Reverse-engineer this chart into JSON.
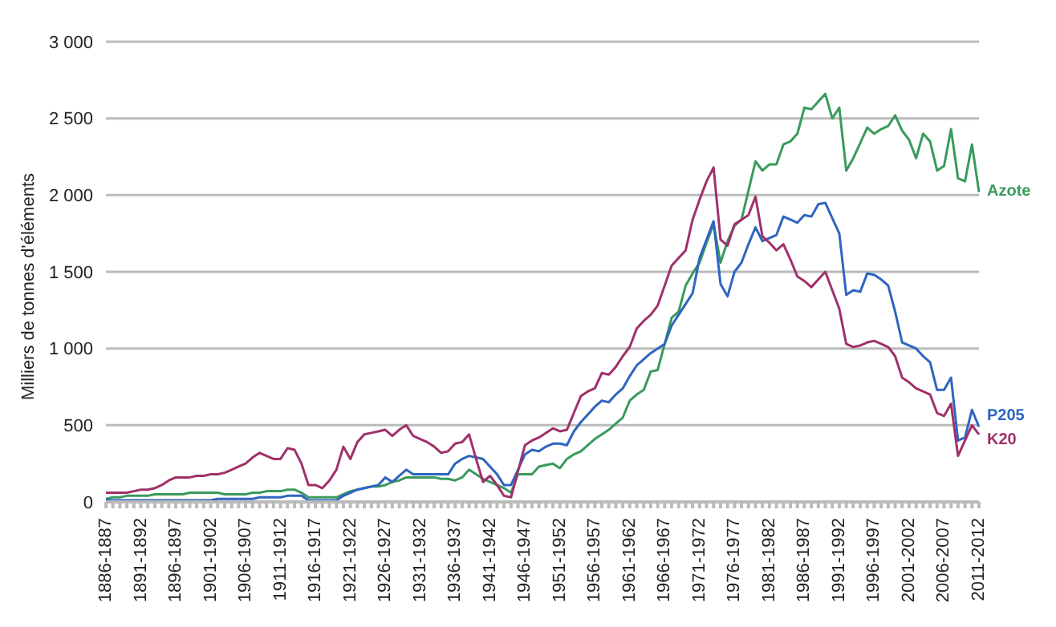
{
  "chart_data": {
    "type": "line",
    "ylabel": "Milliers de tonnes d'éléments",
    "categories": [
      "1886-1887",
      null,
      null,
      null,
      null,
      "1891-1892",
      null,
      null,
      null,
      null,
      "1896-1897",
      null,
      null,
      null,
      null,
      "1901-1902",
      null,
      null,
      null,
      null,
      "1906-1907",
      null,
      null,
      null,
      null,
      "1911-1912",
      null,
      null,
      null,
      null,
      "1916-1917",
      null,
      null,
      null,
      null,
      "1921-1922",
      null,
      null,
      null,
      null,
      "1926-1927",
      null,
      null,
      null,
      null,
      "1931-1932",
      null,
      null,
      null,
      null,
      "1936-1937",
      null,
      null,
      null,
      null,
      "1941-1942",
      null,
      null,
      null,
      null,
      "1946-1947",
      null,
      null,
      null,
      null,
      "1951-1952",
      null,
      null,
      null,
      null,
      "1956-1957",
      null,
      null,
      null,
      null,
      "1961-1962",
      null,
      null,
      null,
      null,
      "1966-1967",
      null,
      null,
      null,
      null,
      "1971-1972",
      null,
      null,
      null,
      null,
      "1976-1977",
      null,
      null,
      null,
      null,
      "1981-1982",
      null,
      null,
      null,
      null,
      "1986-1987",
      null,
      null,
      null,
      null,
      "1991-1992",
      null,
      null,
      null,
      null,
      "1996-1997",
      null,
      null,
      null,
      null,
      "2001-2002",
      null,
      null,
      null,
      null,
      "2006-2007",
      null,
      null,
      null,
      null,
      "2011-2012"
    ],
    "ylim": [
      0,
      3000
    ],
    "yticks": [
      0,
      500,
      {
        "value": 1000,
        "label": "1 000"
      },
      {
        "value": 1500,
        "label": "1 500"
      },
      {
        "value": 2000,
        "label": "2 000"
      },
      {
        "value": 2500,
        "label": "2 500"
      },
      {
        "value": 3000,
        "label": "3 000"
      }
    ],
    "grid": "y",
    "legend": false,
    "marker": "none",
    "line_style": "solid",
    "series": [
      {
        "name": "Azote",
        "color": "#3a9a5c",
        "values": [
          20,
          30,
          30,
          40,
          40,
          40,
          40,
          50,
          50,
          50,
          50,
          50,
          60,
          60,
          60,
          60,
          60,
          50,
          50,
          50,
          50,
          60,
          60,
          70,
          70,
          70,
          80,
          80,
          60,
          30,
          30,
          30,
          30,
          30,
          50,
          70,
          80,
          90,
          100,
          100,
          110,
          130,
          140,
          160,
          160,
          160,
          160,
          160,
          150,
          150,
          140,
          160,
          210,
          180,
          150,
          130,
          110,
          90,
          60,
          180,
          180,
          180,
          230,
          240,
          250,
          220,
          280,
          310,
          330,
          370,
          410,
          440,
          470,
          510,
          550,
          660,
          700,
          730,
          850,
          860,
          1030,
          1200,
          1240,
          1410,
          1490,
          1560,
          1690,
          1810,
          1560,
          1700,
          1800,
          1840,
          2030,
          2220,
          2160,
          2200,
          2200,
          2330,
          2350,
          2400,
          2570,
          2560,
          2610,
          2660,
          2500,
          2570,
          2160,
          2240,
          2340,
          2440,
          2400,
          2430,
          2450,
          2520,
          2420,
          2360,
          2240,
          2400,
          2350,
          2160,
          2190,
          2430,
          2110,
          2090,
          2330,
          2020
        ]
      },
      {
        "name": "P205",
        "color": "#2e65c0",
        "values": [
          10,
          10,
          10,
          10,
          10,
          10,
          10,
          10,
          10,
          10,
          10,
          10,
          10,
          10,
          10,
          10,
          20,
          20,
          20,
          20,
          20,
          20,
          30,
          30,
          30,
          30,
          40,
          40,
          40,
          10,
          10,
          10,
          10,
          10,
          40,
          60,
          80,
          90,
          100,
          110,
          160,
          130,
          170,
          210,
          180,
          180,
          180,
          180,
          180,
          180,
          250,
          280,
          300,
          290,
          280,
          230,
          180,
          110,
          110,
          210,
          310,
          340,
          330,
          360,
          380,
          380,
          370,
          460,
          520,
          570,
          620,
          660,
          650,
          700,
          740,
          820,
          890,
          930,
          970,
          1000,
          1030,
          1150,
          1220,
          1290,
          1360,
          1590,
          1710,
          1830,
          1420,
          1340,
          1500,
          1560,
          1680,
          1790,
          1700,
          1720,
          1740,
          1860,
          1840,
          1820,
          1870,
          1860,
          1940,
          1950,
          1850,
          1750,
          1350,
          1380,
          1370,
          1490,
          1480,
          1450,
          1410,
          1240,
          1040,
          1020,
          1000,
          950,
          910,
          730,
          730,
          810,
          400,
          420,
          600,
          490
        ]
      },
      {
        "name": "K20",
        "color": "#a0306a",
        "values": [
          60,
          60,
          60,
          60,
          70,
          80,
          80,
          90,
          110,
          140,
          160,
          160,
          160,
          170,
          170,
          180,
          180,
          190,
          210,
          230,
          250,
          290,
          320,
          300,
          280,
          280,
          350,
          340,
          250,
          110,
          110,
          90,
          140,
          210,
          360,
          280,
          390,
          440,
          450,
          460,
          470,
          430,
          470,
          500,
          430,
          410,
          390,
          360,
          320,
          330,
          380,
          390,
          440,
          280,
          130,
          170,
          110,
          40,
          30,
          200,
          370,
          400,
          420,
          450,
          480,
          460,
          470,
          580,
          690,
          720,
          740,
          840,
          830,
          880,
          950,
          1010,
          1130,
          1180,
          1220,
          1280,
          1410,
          1540,
          1590,
          1640,
          1840,
          1970,
          2090,
          2180,
          1710,
          1670,
          1810,
          1840,
          1870,
          1990,
          1730,
          1690,
          1640,
          1680,
          1580,
          1470,
          1440,
          1400,
          1450,
          1500,
          1380,
          1260,
          1030,
          1010,
          1020,
          1040,
          1050,
          1030,
          1010,
          950,
          810,
          780,
          740,
          720,
          700,
          580,
          560,
          640,
          300,
          400,
          500,
          440
        ]
      }
    ]
  }
}
